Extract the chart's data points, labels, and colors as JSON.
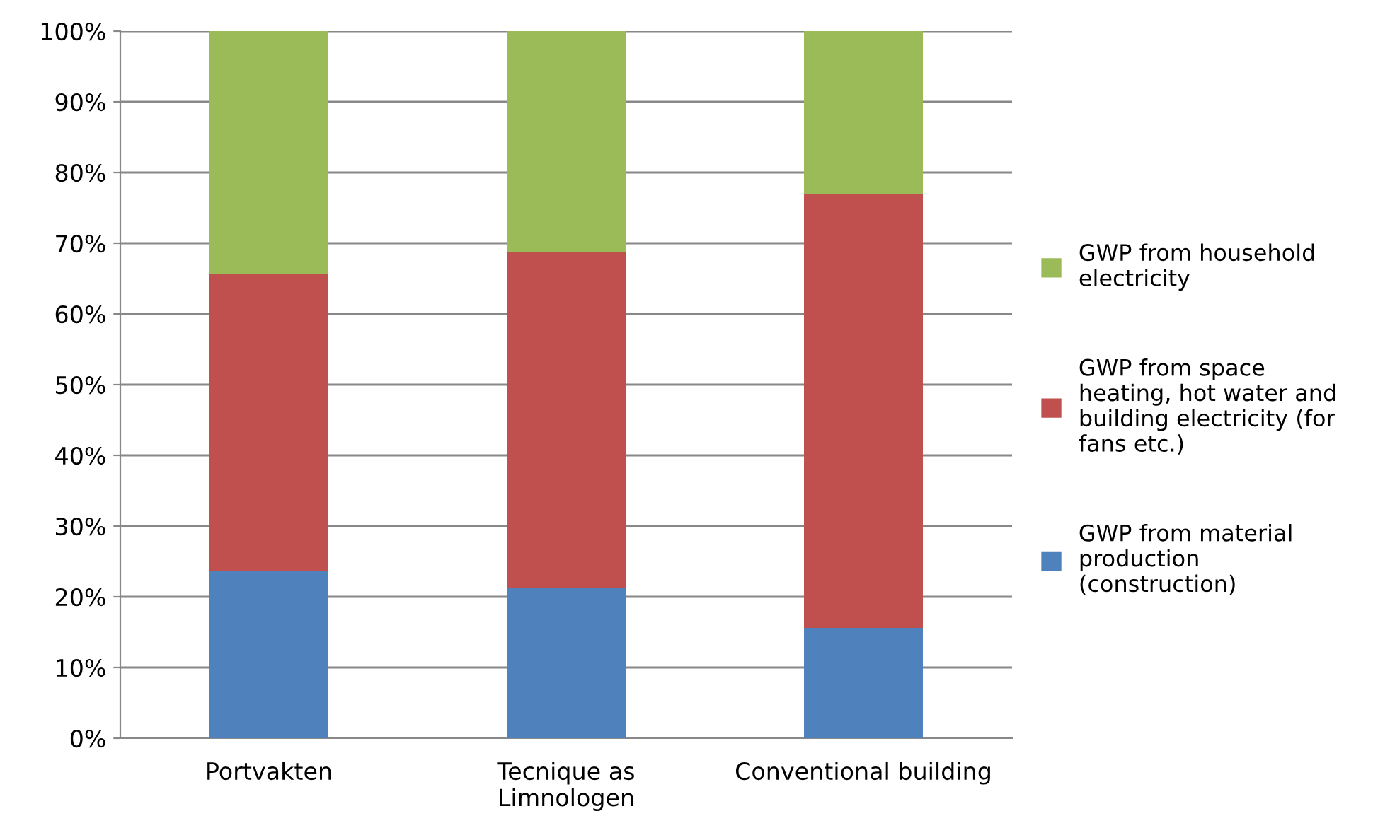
{
  "chart_data": {
    "type": "bar",
    "stacked": true,
    "categories": [
      "Portvakten",
      "Tecnique as\nLimnologen",
      "Conventional building"
    ],
    "series": [
      {
        "name": "GWP from material\nproduction\n(construction)",
        "color": "#4f81bd",
        "values": [
          23.7,
          21.2,
          15.6
        ]
      },
      {
        "name": "GWP from space\nheating, hot water and\nbuilding electricity (for\nfans etc.)",
        "color": "#c0504d",
        "values": [
          42.0,
          47.5,
          61.3
        ]
      },
      {
        "name": "GWP from household\nelectricity",
        "color": "#9bbb59",
        "values": [
          34.3,
          31.3,
          23.1
        ]
      }
    ],
    "ylim": [
      0,
      100
    ],
    "yticks": [
      {
        "value": 0,
        "label": "0%"
      },
      {
        "value": 10,
        "label": "10%"
      },
      {
        "value": 20,
        "label": "20%"
      },
      {
        "value": 30,
        "label": "30%"
      },
      {
        "value": 40,
        "label": "40%"
      },
      {
        "value": 50,
        "label": "50%"
      },
      {
        "value": 60,
        "label": "60%"
      },
      {
        "value": 70,
        "label": "70%"
      },
      {
        "value": 80,
        "label": "80%"
      },
      {
        "value": 90,
        "label": "90%"
      },
      {
        "value": 100,
        "label": "100%"
      }
    ],
    "grid": "y",
    "legend": "right"
  }
}
